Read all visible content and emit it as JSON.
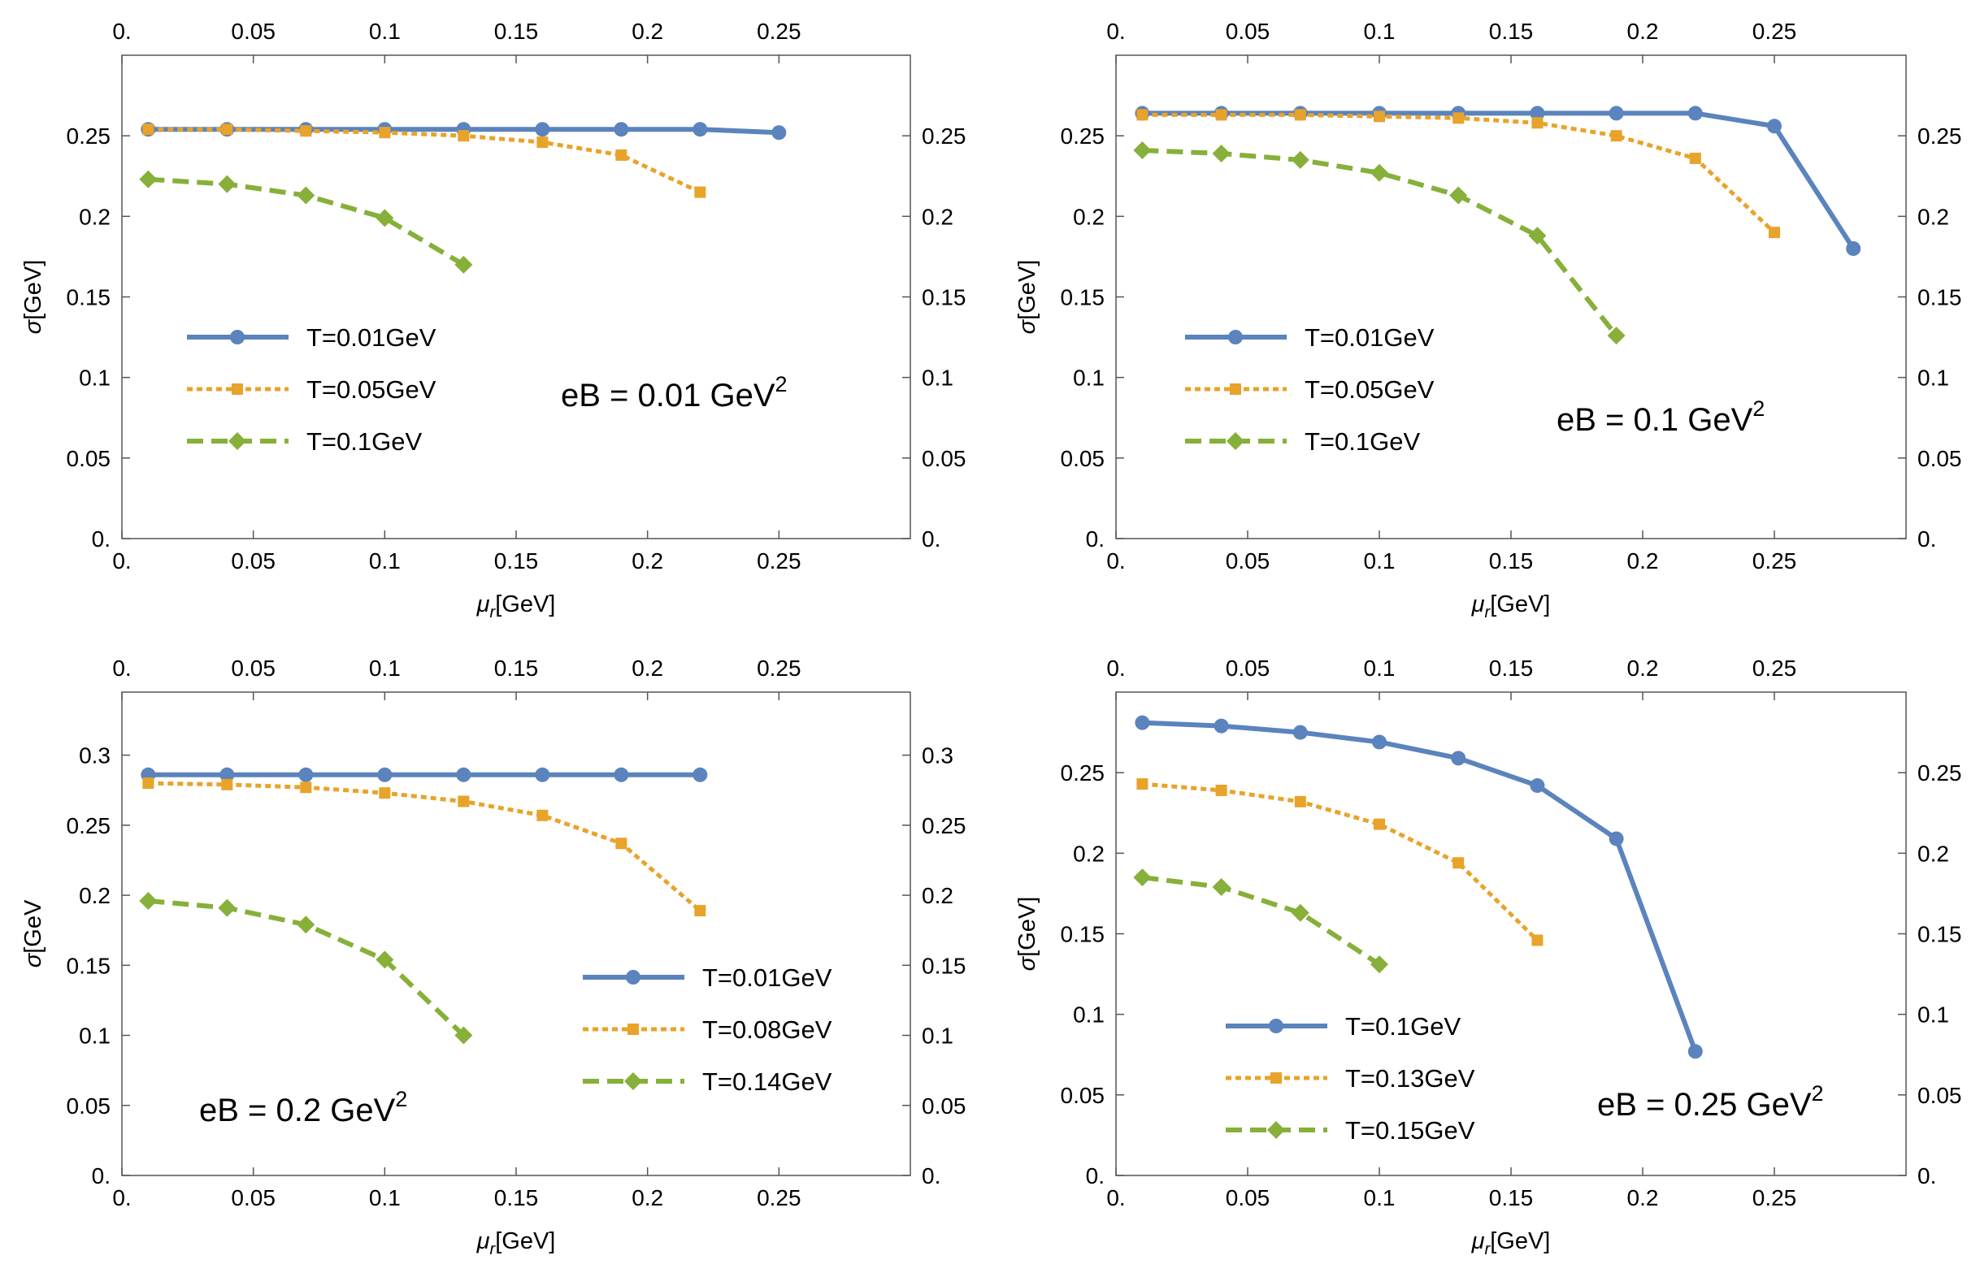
{
  "colors": {
    "series_1": "#5b83bd",
    "series_2": "#e8a32a",
    "series_3": "#86b03a",
    "axis": "#555555"
  },
  "chart_data": [
    {
      "type": "line",
      "annotation": {
        "base": "eB = 0.01 GeV",
        "sup": "2"
      },
      "xlabel": {
        "base": "μ",
        "sub": "r",
        "rest": "[GeV]"
      },
      "ylabel": {
        "base": "σ",
        "rest": "[GeV]"
      },
      "xlim": [
        0,
        0.3
      ],
      "ylim": [
        0,
        0.3
      ],
      "x_ticks": [
        "0.",
        "0.05",
        "0.1",
        "0.15",
        "0.2",
        "0.25"
      ],
      "y_ticks": [
        "0.",
        "0.05",
        "0.1",
        "0.15",
        "0.2",
        "0.25"
      ],
      "legend_position": "center-left",
      "series": [
        {
          "name": "T=0.01GeV",
          "style": "solid",
          "marker": "circle",
          "x": [
            0.01,
            0.04,
            0.07,
            0.1,
            0.13,
            0.16,
            0.19,
            0.22,
            0.25
          ],
          "y": [
            0.254,
            0.254,
            0.254,
            0.254,
            0.254,
            0.254,
            0.254,
            0.254,
            0.252
          ]
        },
        {
          "name": "T=0.05GeV",
          "style": "dotted",
          "marker": "square",
          "x": [
            0.01,
            0.04,
            0.07,
            0.1,
            0.13,
            0.16,
            0.19,
            0.22
          ],
          "y": [
            0.254,
            0.254,
            0.253,
            0.252,
            0.25,
            0.246,
            0.238,
            0.215
          ]
        },
        {
          "name": "T=0.1GeV",
          "style": "dashed",
          "marker": "diamond",
          "x": [
            0.01,
            0.04,
            0.07,
            0.1,
            0.13
          ],
          "y": [
            0.223,
            0.22,
            0.213,
            0.199,
            0.17
          ]
        }
      ]
    },
    {
      "type": "line",
      "annotation": {
        "base": "eB = 0.1 GeV",
        "sup": "2"
      },
      "xlabel": {
        "base": "μ",
        "sub": "r",
        "rest": "[GeV]"
      },
      "ylabel": {
        "base": "σ",
        "rest": "[GeV]"
      },
      "xlim": [
        0,
        0.3
      ],
      "ylim": [
        0,
        0.3
      ],
      "x_ticks": [
        "0.",
        "0.05",
        "0.1",
        "0.15",
        "0.2",
        "0.25"
      ],
      "y_ticks": [
        "0.",
        "0.05",
        "0.1",
        "0.15",
        "0.2",
        "0.25"
      ],
      "legend_position": "center-left",
      "series": [
        {
          "name": "T=0.01GeV",
          "style": "solid",
          "marker": "circle",
          "x": [
            0.01,
            0.04,
            0.07,
            0.1,
            0.13,
            0.16,
            0.19,
            0.22,
            0.25,
            0.28
          ],
          "y": [
            0.264,
            0.264,
            0.264,
            0.264,
            0.264,
            0.264,
            0.264,
            0.264,
            0.256,
            0.18
          ]
        },
        {
          "name": "T=0.05GeV",
          "style": "dotted",
          "marker": "square",
          "x": [
            0.01,
            0.04,
            0.07,
            0.1,
            0.13,
            0.16,
            0.19,
            0.22,
            0.25
          ],
          "y": [
            0.263,
            0.263,
            0.263,
            0.262,
            0.261,
            0.258,
            0.25,
            0.236,
            0.19
          ]
        },
        {
          "name": "T=0.1GeV",
          "style": "dashed",
          "marker": "diamond",
          "x": [
            0.01,
            0.04,
            0.07,
            0.1,
            0.13,
            0.16,
            0.19
          ],
          "y": [
            0.241,
            0.239,
            0.235,
            0.227,
            0.213,
            0.188,
            0.126
          ]
        }
      ]
    },
    {
      "type": "line",
      "annotation": {
        "base": "eB = 0.2 GeV",
        "sup": "2"
      },
      "xlabel": {
        "base": "μ",
        "sub": "r",
        "rest": "[GeV]"
      },
      "ylabel": {
        "base": "σ",
        "rest": "[GeV"
      },
      "xlim": [
        0,
        0.3
      ],
      "ylim": [
        0,
        0.345
      ],
      "x_ticks": [
        "0.",
        "0.05",
        "0.1",
        "0.15",
        "0.2",
        "0.25"
      ],
      "y_ticks": [
        "0.",
        "0.05",
        "0.1",
        "0.15",
        "0.2",
        "0.25",
        "0.3"
      ],
      "legend_position": "bottom-right",
      "series": [
        {
          "name": "T=0.01GeV",
          "style": "solid",
          "marker": "circle",
          "x": [
            0.01,
            0.04,
            0.07,
            0.1,
            0.13,
            0.16,
            0.19,
            0.22
          ],
          "y": [
            0.286,
            0.286,
            0.286,
            0.286,
            0.286,
            0.286,
            0.286,
            0.286
          ]
        },
        {
          "name": "T=0.08GeV",
          "style": "dotted",
          "marker": "square",
          "x": [
            0.01,
            0.04,
            0.07,
            0.1,
            0.13,
            0.16,
            0.19,
            0.22
          ],
          "y": [
            0.28,
            0.279,
            0.277,
            0.273,
            0.267,
            0.257,
            0.237,
            0.189
          ]
        },
        {
          "name": "T=0.14GeV",
          "style": "dashed",
          "marker": "diamond",
          "x": [
            0.01,
            0.04,
            0.07,
            0.1,
            0.13
          ],
          "y": [
            0.196,
            0.191,
            0.179,
            0.154,
            0.1
          ]
        }
      ]
    },
    {
      "type": "line",
      "annotation": {
        "base": "eB = 0.25 GeV",
        "sup": "2"
      },
      "xlabel": {
        "base": "μ",
        "sub": "r",
        "rest": "[GeV]"
      },
      "ylabel": {
        "base": "σ",
        "rest": "[GeV]"
      },
      "xlim": [
        0,
        0.3
      ],
      "ylim": [
        0,
        0.3
      ],
      "x_ticks": [
        "0.",
        "0.05",
        "0.1",
        "0.15",
        "0.2",
        "0.25"
      ],
      "y_ticks": [
        "0.",
        "0.05",
        "0.1",
        "0.15",
        "0.2",
        "0.25"
      ],
      "legend_position": "bottom-left",
      "series": [
        {
          "name": "T=0.1GeV",
          "style": "solid",
          "marker": "circle",
          "x": [
            0.01,
            0.04,
            0.07,
            0.1,
            0.13,
            0.16,
            0.19,
            0.22
          ],
          "y": [
            0.281,
            0.279,
            0.275,
            0.269,
            0.259,
            0.242,
            0.209,
            0.077
          ]
        },
        {
          "name": "T=0.13GeV",
          "style": "dotted",
          "marker": "square",
          "x": [
            0.01,
            0.04,
            0.07,
            0.1,
            0.13,
            0.16
          ],
          "y": [
            0.243,
            0.239,
            0.232,
            0.218,
            0.194,
            0.146
          ]
        },
        {
          "name": "T=0.15GeV",
          "style": "dashed",
          "marker": "diamond",
          "x": [
            0.01,
            0.04,
            0.07,
            0.1
          ],
          "y": [
            0.185,
            0.179,
            0.163,
            0.131
          ]
        }
      ]
    }
  ]
}
